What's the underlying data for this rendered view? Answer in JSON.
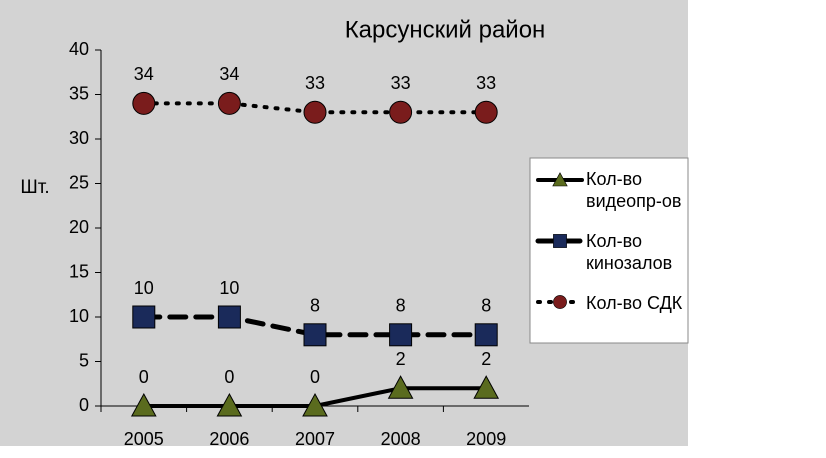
{
  "chart_data": {
    "type": "line",
    "title": "Карсунский район",
    "y_label": "Шт.",
    "categories": [
      "2005",
      "2006",
      "2007",
      "2008",
      "2009"
    ],
    "series": [
      {
        "name": "Кол-во видеопр-ов",
        "color": "#000000",
        "marker": "triangle",
        "marker_color": "#5a6b1e",
        "dash": "solid",
        "values": [
          0,
          0,
          0,
          2,
          2
        ]
      },
      {
        "name": "Кол-во кинозалов",
        "color": "#000000",
        "marker": "square",
        "marker_color": "#1a2a5a",
        "dash": "dashed",
        "values": [
          10,
          10,
          8,
          8,
          8
        ]
      },
      {
        "name": "Кол-во СДК",
        "color": "#000000",
        "marker": "circle",
        "marker_color": "#7a1c1c",
        "dash": "dotted",
        "values": [
          34,
          34,
          33,
          33,
          33
        ]
      }
    ],
    "ylim": [
      0,
      40
    ],
    "yticks": [
      0,
      5,
      10,
      15,
      20,
      25,
      30,
      35,
      40
    ],
    "grid": false,
    "legend": "right"
  }
}
